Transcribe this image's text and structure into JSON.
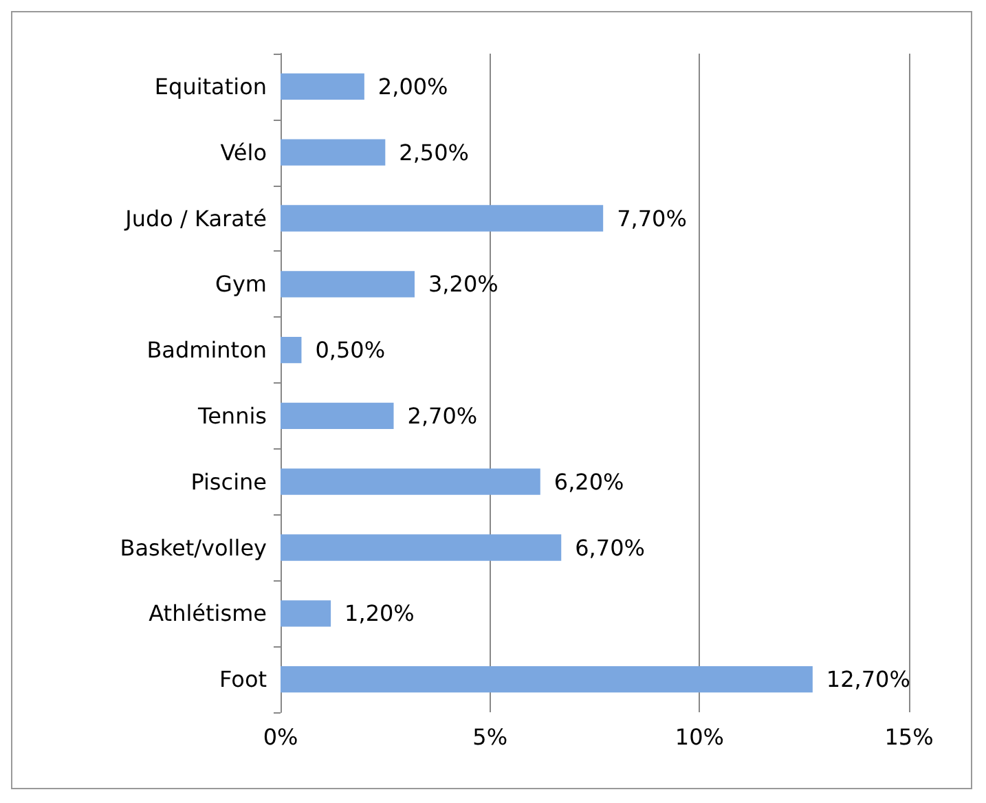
{
  "chart_data": {
    "type": "bar",
    "orientation": "horizontal",
    "categories": [
      "Equitation",
      "Vélo",
      "Judo / Karaté",
      "Gym",
      "Badminton",
      "Tennis",
      "Piscine",
      "Basket/volley",
      "Athlétisme",
      "Foot"
    ],
    "values": [
      2.0,
      2.5,
      7.7,
      3.2,
      0.5,
      2.7,
      6.2,
      6.7,
      1.2,
      12.7
    ],
    "value_labels": [
      "2,00%",
      "2,50%",
      "7,70%",
      "3,20%",
      "0,50%",
      "2,70%",
      "6,20%",
      "6,70%",
      "1,20%",
      "12,70%"
    ],
    "color": "#7ba7e0",
    "xlim": [
      0,
      15
    ],
    "xticks": [
      {
        "value": 0,
        "label": "0%"
      },
      {
        "value": 5,
        "label": "5%"
      },
      {
        "value": 10,
        "label": "10%"
      },
      {
        "value": 15,
        "label": "15%"
      }
    ],
    "grid": "x"
  }
}
